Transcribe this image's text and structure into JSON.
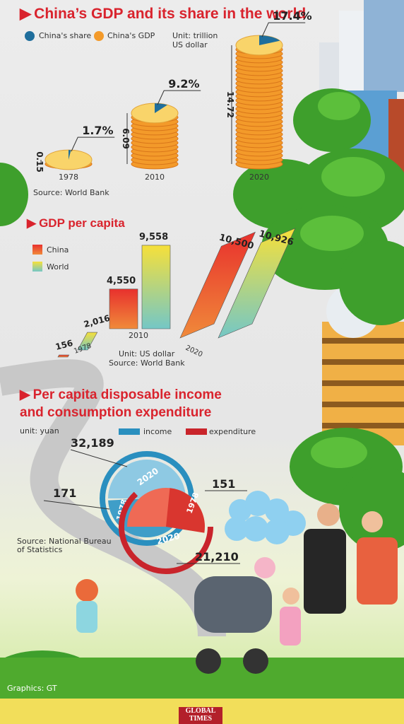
{
  "section1": {
    "title": "China’s GDP and its share in the world",
    "legend_china_share": "China's share",
    "legend_china_gdp": "China's GDP",
    "unit_line1": "Unit: trillion",
    "unit_line2": "US dollar",
    "source": "Source: World Bank"
  },
  "section2": {
    "title": "GDP per capita",
    "legend_china": "China",
    "legend_world": "World",
    "unit": "Unit: US dollar",
    "source": "Source: World Bank"
  },
  "section3": {
    "title_line1": "Per capita disposable income",
    "title_line2": "and consumption expenditure",
    "unit": "unit: yuan",
    "legend_income": "income",
    "legend_expenditure": "expenditure",
    "source_line1": "Source: National Bureau",
    "source_line2": "of Statistics"
  },
  "credit": "Graphics: GT",
  "logo_line1": "GLOBAL",
  "logo_line2": "TIMES",
  "colors": {
    "red": "#d9232d",
    "share_blue": "#1f6e9c",
    "gdp_orange": "#f39a2a",
    "coin_yellow": "#f9d46a",
    "income_blue": "#2a8fbf",
    "expenditure_red": "#c9242b"
  },
  "chart_data": [
    {
      "type": "pie",
      "title": "China’s GDP and its share in the world",
      "categories": [
        "1978",
        "2010",
        "2020"
      ],
      "series": [
        {
          "name": "China's GDP",
          "values": [
            0.15,
            6.09,
            14.72
          ],
          "labels": [
            "0.15",
            "6.09",
            "14.72"
          ]
        },
        {
          "name": "China's share",
          "values": [
            1.7,
            9.2,
            17.4
          ],
          "labels": [
            "1.7%",
            "9.2%",
            "17.4%"
          ]
        }
      ]
    },
    {
      "type": "bar",
      "title": "GDP per capita",
      "categories": [
        "1978",
        "2010",
        "2020"
      ],
      "series": [
        {
          "name": "China",
          "values": [
            156,
            4550,
            10500
          ],
          "labels": [
            "156",
            "4,550",
            "10,500"
          ]
        },
        {
          "name": "World",
          "values": [
            2016,
            9558,
            10926
          ],
          "labels": [
            "2,016",
            "9,558",
            "10,926"
          ]
        }
      ]
    },
    {
      "type": "pie",
      "title": "Per capita disposable income and consumption expenditure",
      "categories": [
        "1978",
        "2020"
      ],
      "series": [
        {
          "name": "income",
          "values": [
            171,
            32189
          ],
          "labels": [
            "171",
            "32,189"
          ]
        },
        {
          "name": "expenditure",
          "values": [
            151,
            21210
          ],
          "labels": [
            "151",
            "21,210"
          ]
        }
      ]
    }
  ]
}
